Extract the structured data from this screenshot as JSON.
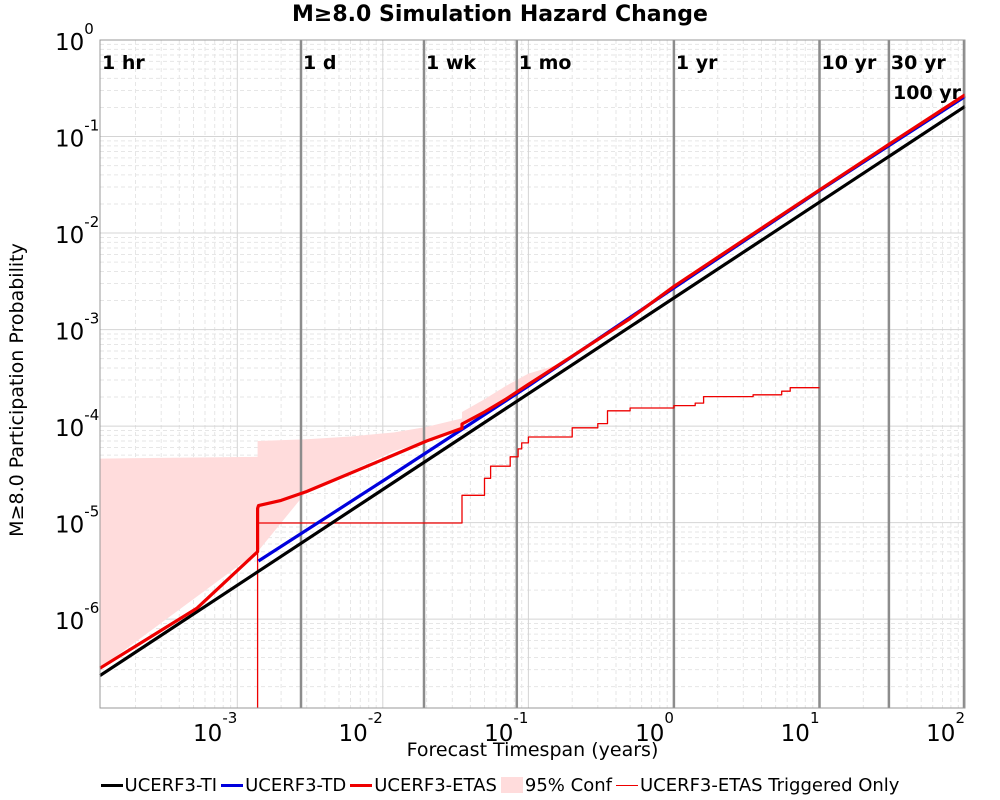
{
  "chart_data": {
    "type": "line",
    "title": "M≥8.0 Simulation Hazard Change",
    "xlabel": "Forecast Timespan (years)",
    "ylabel": "M≥8.0 Participation Probability",
    "xscale": "log",
    "yscale": "log",
    "xlim": [
      0.000114,
      100
    ],
    "ylim": [
      1.2e-07,
      1
    ],
    "grid": true,
    "legend_position": "bottom",
    "x_ticks": [
      {
        "value": 0.001,
        "base": "10",
        "exp": "-3"
      },
      {
        "value": 0.01,
        "base": "10",
        "exp": "-2"
      },
      {
        "value": 0.1,
        "base": "10",
        "exp": "-1"
      },
      {
        "value": 1,
        "base": "10",
        "exp": "0"
      },
      {
        "value": 10,
        "base": "10",
        "exp": "1"
      },
      {
        "value": 100,
        "base": "10",
        "exp": "2"
      }
    ],
    "y_ticks": [
      {
        "value": 1e-06,
        "base": "10",
        "exp": "-6"
      },
      {
        "value": 1e-05,
        "base": "10",
        "exp": "-5"
      },
      {
        "value": 0.0001,
        "base": "10",
        "exp": "-4"
      },
      {
        "value": 0.001,
        "base": "10",
        "exp": "-3"
      },
      {
        "value": 0.01,
        "base": "10",
        "exp": "-2"
      },
      {
        "value": 0.1,
        "base": "10",
        "exp": "-1"
      },
      {
        "value": 1,
        "base": "10",
        "exp": "0"
      }
    ],
    "timespan_markers": [
      {
        "label": "1 hr",
        "x": 0.000114,
        "row": 1
      },
      {
        "label": "1 d",
        "x": 0.00274,
        "row": 1
      },
      {
        "label": "1 wk",
        "x": 0.0192,
        "row": 1
      },
      {
        "label": "1 mo",
        "x": 0.0833,
        "row": 1
      },
      {
        "label": "1 yr",
        "x": 1,
        "row": 1
      },
      {
        "label": "10 yr",
        "x": 10,
        "row": 1
      },
      {
        "label": "30 yr",
        "x": 30,
        "row": 1
      },
      {
        "label": "100 yr",
        "x": 100,
        "row": 2
      }
    ],
    "series": [
      {
        "name": "UCERF3-TI",
        "color": "#000000",
        "style": "thick",
        "x": [
          0.000114,
          100
        ],
        "y": [
          2.6e-07,
          0.205
        ]
      },
      {
        "name": "UCERF3-TD",
        "color": "#0000dd",
        "style": "thick",
        "x": [
          0.0014,
          0.01,
          0.1,
          1,
          10,
          100
        ],
        "y": [
          4e-06,
          2.7e-05,
          0.00026,
          0.0027,
          0.0275,
          0.26
        ]
      },
      {
        "name": "UCERF3-ETAS",
        "color": "#ee0000",
        "style": "thick",
        "x": [
          0.000114,
          0.00053,
          0.00138,
          0.00138,
          0.0014,
          0.002,
          0.003,
          0.005,
          0.01,
          0.02,
          0.035,
          0.035,
          0.05,
          0.07,
          0.1,
          0.2,
          0.5,
          1,
          3,
          10,
          30,
          100
        ],
        "y": [
          3.1e-07,
          1.3e-06,
          5e-06,
          1.4e-05,
          1.5e-05,
          1.7e-05,
          2.1e-05,
          2.9e-05,
          4.5e-05,
          7e-05,
          9.5e-05,
          0.000105,
          0.00014,
          0.00019,
          0.00027,
          0.00053,
          0.0013,
          0.0028,
          0.0084,
          0.028,
          0.083,
          0.27
        ]
      },
      {
        "name": "95% Conf",
        "color": "#ffdcdc",
        "style": "band",
        "x": [
          0.000114,
          0.00138,
          0.00138,
          0.003,
          0.006,
          0.012,
          0.02,
          0.035,
          0.035,
          0.05,
          0.07,
          0.1,
          0.15,
          0.2
        ],
        "upper": [
          4.6e-05,
          4.8e-05,
          7e-05,
          7.3e-05,
          7.8e-05,
          8.6e-05,
          9.8e-05,
          0.00012,
          0.00014,
          0.00019,
          0.00026,
          0.00035,
          0.00042,
          0.00053
        ],
        "lower": [
          3.1e-07,
          5e-06,
          5e-06,
          2.1e-05,
          3.4e-05,
          5.5e-05,
          7e-05,
          9.5e-05,
          0.000105,
          0.00014,
          0.00019,
          0.00027,
          0.00038,
          0.00053
        ]
      },
      {
        "name": "UCERF3-ETAS Triggered Only",
        "color": "#ee0000",
        "style": "thin-step",
        "x": [
          0.00138,
          0.00138,
          0.035,
          0.035,
          0.05,
          0.05,
          0.055,
          0.055,
          0.075,
          0.075,
          0.085,
          0.085,
          0.09,
          0.09,
          0.1,
          0.1,
          0.2,
          0.2,
          0.3,
          0.3,
          0.35,
          0.35,
          0.5,
          0.5,
          1.0,
          1.0,
          1.4,
          1.4,
          1.6,
          1.6,
          3.5,
          3.5,
          5.5,
          5.5,
          6.3,
          6.3,
          10
        ],
        "y": [
          1.2e-07,
          9.9e-06,
          9.9e-06,
          1.92e-05,
          1.92e-05,
          2.88e-05,
          2.88e-05,
          3.84e-05,
          3.84e-05,
          4.8e-05,
          4.8e-05,
          5.8e-05,
          5.8e-05,
          6.7e-05,
          6.7e-05,
          7.7e-05,
          7.7e-05,
          9.6e-05,
          9.6e-05,
          0.000106,
          0.000106,
          0.000144,
          0.000144,
          0.000154,
          0.000154,
          0.000163,
          0.000163,
          0.000173,
          0.000173,
          0.000202,
          0.000202,
          0.000211,
          0.000211,
          0.00023,
          0.00023,
          0.00025,
          0.00025
        ]
      }
    ]
  }
}
